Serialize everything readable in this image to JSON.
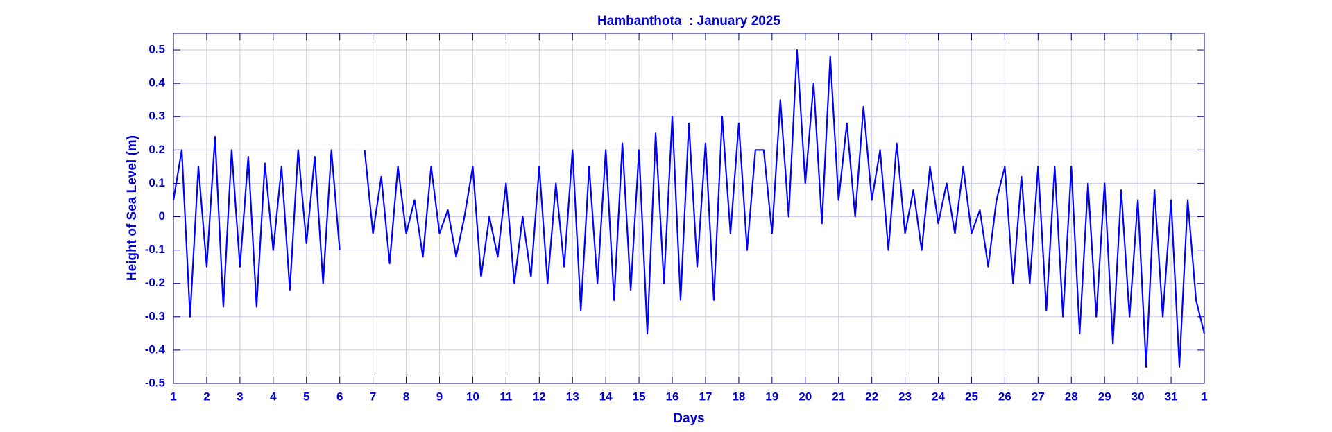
{
  "chart_data": {
    "type": "line",
    "title": "Hambanthota  : January 2025",
    "xlabel": "Days",
    "ylabel": "Height of Sea Level (m)",
    "color": "#0000ff",
    "grid": true,
    "xlim": [
      1,
      32
    ],
    "ylim": [
      -0.5,
      0.55
    ],
    "xticks": [
      1,
      2,
      3,
      4,
      5,
      6,
      7,
      8,
      9,
      10,
      11,
      12,
      13,
      14,
      15,
      16,
      17,
      18,
      19,
      20,
      21,
      22,
      23,
      24,
      25,
      26,
      27,
      28,
      29,
      30,
      31,
      {
        "value": 32,
        "label": "1"
      }
    ],
    "yticks": [
      -0.5,
      -0.4,
      -0.3,
      -0.2,
      -0.1,
      0,
      0.1,
      0.2,
      0.3,
      0.4,
      0.5
    ],
    "x": [
      1,
      1.25,
      1.5,
      1.75,
      2,
      2.25,
      2.5,
      2.75,
      3,
      3.25,
      3.5,
      3.75,
      4,
      4.25,
      4.5,
      4.75,
      5,
      5.25,
      5.5,
      5.75,
      6,
      6.25,
      6.5,
      6.75,
      7,
      7.25,
      7.5,
      7.75,
      8,
      8.25,
      8.5,
      8.75,
      9,
      9.25,
      9.5,
      9.75,
      10,
      10.25,
      10.5,
      10.75,
      11,
      11.25,
      11.5,
      11.75,
      12,
      12.25,
      12.5,
      12.75,
      13,
      13.25,
      13.5,
      13.75,
      14,
      14.25,
      14.5,
      14.75,
      15,
      15.25,
      15.5,
      15.75,
      16,
      16.25,
      16.5,
      16.75,
      17,
      17.25,
      17.5,
      17.75,
      18,
      18.25,
      18.5,
      18.75,
      19,
      19.25,
      19.5,
      19.75,
      20,
      20.25,
      20.5,
      20.75,
      21,
      21.25,
      21.5,
      21.75,
      22,
      22.25,
      22.5,
      22.75,
      23,
      23.25,
      23.5,
      23.75,
      24,
      24.25,
      24.5,
      24.75,
      25,
      25.25,
      25.5,
      25.75,
      26,
      26.25,
      26.5,
      26.75,
      27,
      27.25,
      27.5,
      27.75,
      28,
      28.25,
      28.5,
      28.75,
      29,
      29.25,
      29.5,
      29.75,
      30,
      30.25,
      30.5,
      30.75,
      31,
      31.25,
      31.5,
      31.75,
      32
    ],
    "values": [
      0.05,
      0.2,
      -0.3,
      0.15,
      -0.15,
      0.24,
      -0.27,
      0.2,
      -0.15,
      0.18,
      -0.27,
      0.16,
      -0.1,
      0.15,
      -0.22,
      0.2,
      -0.08,
      0.18,
      -0.2,
      0.2,
      -0.1,
      null,
      null,
      0.2,
      -0.05,
      0.12,
      -0.14,
      0.15,
      -0.05,
      0.05,
      -0.12,
      0.15,
      -0.05,
      0.02,
      -0.12,
      0.0,
      0.15,
      -0.18,
      0.0,
      -0.12,
      0.1,
      -0.2,
      0.0,
      -0.18,
      0.15,
      -0.2,
      0.1,
      -0.15,
      0.2,
      -0.28,
      0.15,
      -0.2,
      0.2,
      -0.25,
      0.22,
      -0.22,
      0.2,
      -0.35,
      0.25,
      -0.2,
      0.3,
      -0.25,
      0.28,
      -0.15,
      0.22,
      -0.25,
      0.3,
      -0.05,
      0.28,
      -0.1,
      0.2,
      0.2,
      -0.05,
      0.35,
      0.0,
      0.5,
      0.1,
      0.4,
      -0.02,
      0.48,
      0.05,
      0.28,
      0.0,
      0.33,
      0.05,
      0.2,
      -0.1,
      0.22,
      -0.05,
      0.08,
      -0.1,
      0.15,
      -0.02,
      0.1,
      -0.05,
      0.15,
      -0.05,
      0.02,
      -0.15,
      0.05,
      0.15,
      -0.2,
      0.12,
      -0.2,
      0.15,
      -0.28,
      0.15,
      -0.3,
      0.15,
      -0.35,
      0.1,
      -0.3,
      0.1,
      -0.38,
      0.08,
      -0.3,
      0.05,
      -0.45,
      0.08,
      -0.3,
      0.05,
      -0.45,
      0.05,
      -0.25,
      -0.35
    ]
  }
}
